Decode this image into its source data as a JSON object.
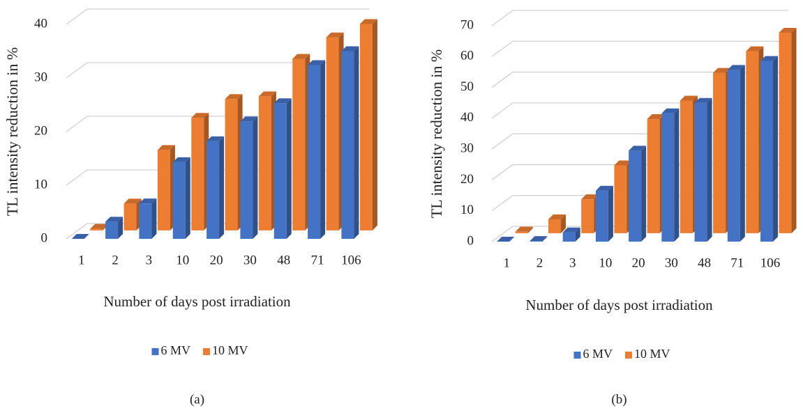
{
  "chart_data": [
    {
      "type": "bar3d",
      "caption": "(a)",
      "x_label": "Number of days post irradiation",
      "y_label": "TL intensity reduction in %",
      "categories": [
        "1",
        "2",
        "3",
        "10",
        "20",
        "30",
        "48",
        "71",
        "106"
      ],
      "series": [
        {
          "name": "6 MV",
          "color": "#4472c4",
          "values": [
            0,
            3.2,
            6.6,
            14.3,
            18.2,
            21.9,
            25.3,
            32.4,
            35
          ]
        },
        {
          "name": "10 MV",
          "color": "#ed7d31",
          "values": [
            0.3,
            5,
            15,
            21,
            24.5,
            25,
            32,
            36,
            38.5
          ]
        }
      ],
      "ylim": [
        0,
        40
      ],
      "yticks": [
        0,
        10,
        20,
        30,
        40
      ],
      "grid": true
    },
    {
      "type": "bar3d",
      "caption": "(b)",
      "x_label": "Number of days post irradiation",
      "y_label": "TL intensity reduction in %",
      "categories": [
        "1",
        "2",
        "3",
        "10",
        "20",
        "30",
        "48",
        "71",
        "106"
      ],
      "series": [
        {
          "name": "6 MV",
          "color": "#4472c4",
          "values": [
            0,
            0.2,
            3,
            16.5,
            29.5,
            41.6,
            45,
            55.7,
            58.6
          ]
        },
        {
          "name": "10 MV",
          "color": "#ed7d31",
          "values": [
            0.5,
            4.5,
            11,
            22,
            37,
            43,
            52,
            59,
            65
          ]
        }
      ],
      "ylim": [
        0,
        70
      ],
      "yticks": [
        0,
        10,
        20,
        30,
        40,
        50,
        60,
        70
      ],
      "grid": true
    }
  ]
}
